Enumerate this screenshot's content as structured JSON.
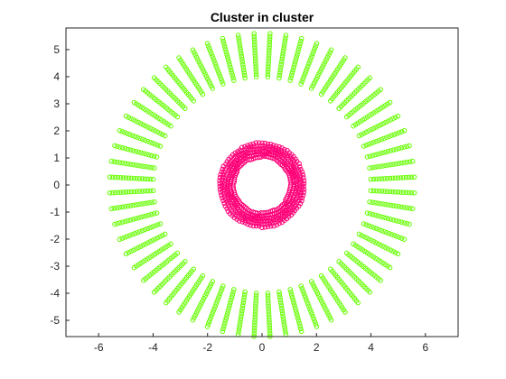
{
  "chart_data": {
    "type": "scatter",
    "title": "Cluster in cluster",
    "xlabel": "",
    "ylabel": "",
    "xlim": [
      -7.2,
      7.2
    ],
    "ylim": [
      -5.6,
      5.8
    ],
    "xticks": [
      -6,
      -4,
      -2,
      0,
      2,
      4,
      6
    ],
    "yticks": [
      -5,
      -4,
      -3,
      -2,
      -1,
      0,
      1,
      2,
      3,
      4,
      5
    ],
    "grid": false,
    "legend": "none",
    "marker": "circle-open",
    "series": [
      {
        "color": "#66ff00",
        "description": "outer ring: 60 radial spokes (every 6 deg) of points at radii 4.0 to 5.6 in steps of 0.1",
        "generator": {
          "kind": "spokes",
          "spokes": 60,
          "r_min": 4.0,
          "r_max": 5.6,
          "r_step": 0.1,
          "angle_offset_deg": 3
        }
      },
      {
        "color": "#ff0077",
        "description": "inner cluster: dense points on rings of radius ~1.05 to ~1.55",
        "generator": {
          "kind": "rings",
          "radii": [
            1.05,
            1.15,
            1.25,
            1.35,
            1.45,
            1.55
          ],
          "points_per_ring": 90
        }
      }
    ]
  }
}
